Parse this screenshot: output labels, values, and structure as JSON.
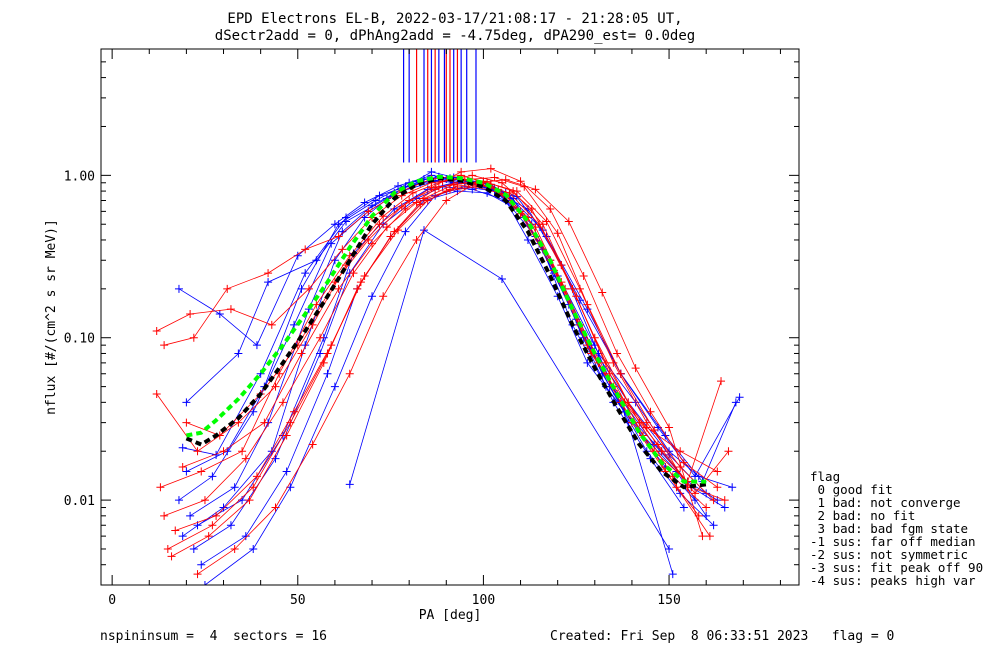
{
  "chart_data": {
    "type": "line",
    "title": "EPD Electrons EL-B, 2022-03-17/21:08:17 - 21:28:05 UT,",
    "subtitle": "dSectr2add = 0, dPhAng2add = -4.75deg, dPA290_est=   0.0deg",
    "xlabel": "PA [deg]",
    "ylabel": "nflux [#/(cm^2 s sr MeV)]",
    "xlim": [
      -3,
      185
    ],
    "ylim": [
      0.003,
      6.0
    ],
    "yscale": "log",
    "xticks": [
      0,
      50,
      100,
      150
    ],
    "xtick_labels": [
      "0",
      "50",
      "100",
      "150"
    ],
    "yticks": [
      0.01,
      0.1,
      1.0
    ],
    "ytick_labels": [
      "0.01",
      "0.10",
      "1.00"
    ],
    "grid": false,
    "legend": {
      "placement": "right",
      "title": "flag",
      "entries": [
        " 0 good fit",
        " 1 bad: not converge",
        " 2 bad: no fit",
        " 3 bad: bad fgm state",
        "-1 sus: far off median",
        "-2 sus: not symmetric",
        "-3 sus: fit peak off 90",
        "-4 sus: peaks high var"
      ]
    },
    "series": [
      {
        "color": "#0000ff",
        "x": [
          19,
          30,
          43,
          52,
          60,
          68,
          76,
          84,
          92,
          100,
          106,
          112,
          120,
          128,
          138,
          148,
          156,
          165
        ],
        "y": [
          0.006,
          0.009,
          0.02,
          0.09,
          0.3,
          0.55,
          0.78,
          0.95,
          0.97,
          0.9,
          0.7,
          0.4,
          0.18,
          0.07,
          0.035,
          0.02,
          0.012,
          0.009
        ]
      },
      {
        "color": "#0000ff",
        "x": [
          21,
          33,
          42,
          53,
          62,
          70,
          79,
          86,
          94,
          102,
          108,
          116,
          124,
          133,
          143,
          152,
          160
        ],
        "y": [
          0.008,
          0.012,
          0.03,
          0.15,
          0.45,
          0.65,
          0.85,
          1.05,
          0.95,
          0.88,
          0.72,
          0.35,
          0.12,
          0.05,
          0.025,
          0.015,
          0.008
        ]
      },
      {
        "color": "#0000ff",
        "x": [
          20,
          31,
          41,
          51,
          61,
          71,
          80,
          88,
          96,
          104,
          113,
          122,
          131,
          141,
          150,
          158,
          167
        ],
        "y": [
          0.015,
          0.02,
          0.05,
          0.2,
          0.5,
          0.7,
          0.9,
          0.98,
          0.92,
          0.8,
          0.5,
          0.2,
          0.08,
          0.04,
          0.02,
          0.014,
          0.012
        ]
      },
      {
        "color": "#0000ff",
        "x": [
          18,
          27,
          38,
          49,
          59,
          69,
          78,
          87,
          95,
          103,
          111,
          119,
          127,
          136,
          146,
          155,
          163
        ],
        "y": [
          0.01,
          0.014,
          0.035,
          0.12,
          0.38,
          0.6,
          0.8,
          0.92,
          0.9,
          0.82,
          0.55,
          0.25,
          0.1,
          0.045,
          0.022,
          0.013,
          0.01
        ]
      },
      {
        "color": "#0000ff",
        "x": [
          22,
          32,
          44,
          56,
          64,
          73,
          82,
          89,
          97,
          106,
          114,
          123,
          132,
          140,
          149,
          157
        ],
        "y": [
          0.005,
          0.007,
          0.018,
          0.08,
          0.25,
          0.5,
          0.72,
          0.85,
          0.82,
          0.7,
          0.42,
          0.16,
          0.06,
          0.03,
          0.016,
          0.01
        ]
      },
      {
        "color": "#0000ff",
        "x": [
          19,
          28,
          40,
          52,
          63,
          72,
          81,
          90,
          98,
          107,
          115,
          125,
          134,
          144,
          153,
          162
        ],
        "y": [
          0.021,
          0.019,
          0.06,
          0.25,
          0.55,
          0.75,
          0.88,
          0.95,
          0.87,
          0.75,
          0.38,
          0.13,
          0.05,
          0.02,
          0.011,
          0.007
        ]
      },
      {
        "color": "#0000ff",
        "x": [
          24,
          36,
          47,
          58,
          66,
          75,
          84,
          93,
          101,
          110,
          118,
          126,
          135,
          145,
          154
        ],
        "y": [
          0.004,
          0.006,
          0.015,
          0.06,
          0.2,
          0.42,
          0.7,
          0.8,
          0.78,
          0.6,
          0.3,
          0.11,
          0.04,
          0.018,
          0.009
        ]
      },
      {
        "color": "#0000ff",
        "x": [
          64,
          84,
          105,
          150
        ],
        "y": [
          0.0125,
          0.46,
          0.23,
          0.005
        ]
      },
      {
        "color": "#0000ff",
        "x": [
          20,
          34,
          42,
          55,
          63,
          74,
          83,
          91,
          100,
          109,
          117,
          128,
          137,
          147,
          157,
          169
        ],
        "y": [
          0.04,
          0.08,
          0.22,
          0.3,
          0.52,
          0.72,
          0.9,
          0.96,
          0.9,
          0.74,
          0.42,
          0.15,
          0.06,
          0.028,
          0.014,
          0.043
        ]
      },
      {
        "color": "#0000ff",
        "x": [
          23,
          35,
          46,
          57,
          65,
          76,
          85,
          92,
          99,
          106,
          116,
          126,
          137,
          149,
          159,
          168
        ],
        "y": [
          0.007,
          0.01,
          0.025,
          0.1,
          0.33,
          0.62,
          0.82,
          0.9,
          0.88,
          0.78,
          0.46,
          0.17,
          0.06,
          0.025,
          0.013,
          0.04
        ]
      },
      {
        "color": "#0000ff",
        "x": [
          25,
          38,
          48,
          60,
          70,
          79,
          87,
          95,
          103,
          112,
          121,
          130,
          139,
          151
        ],
        "y": [
          0.003,
          0.005,
          0.012,
          0.05,
          0.18,
          0.45,
          0.75,
          0.85,
          0.8,
          0.62,
          0.28,
          0.09,
          0.03,
          0.0035
        ]
      },
      {
        "color": "#0000ff",
        "x": [
          18,
          29,
          39,
          50,
          60,
          68,
          77,
          86,
          94,
          102,
          110,
          120,
          129,
          139,
          150,
          160
        ],
        "y": [
          0.2,
          0.14,
          0.09,
          0.32,
          0.5,
          0.68,
          0.86,
          1.0,
          0.93,
          0.84,
          0.6,
          0.24,
          0.09,
          0.04,
          0.019,
          0.011
        ]
      },
      {
        "color": "#ff0000",
        "x": [
          12,
          21,
          32,
          43,
          53,
          62,
          70,
          78,
          86,
          94,
          102,
          110,
          118,
          126,
          135,
          144,
          153,
          163
        ],
        "y": [
          0.11,
          0.14,
          0.15,
          0.12,
          0.2,
          0.35,
          0.55,
          0.75,
          0.9,
          0.95,
          0.85,
          0.6,
          0.3,
          0.12,
          0.05,
          0.028,
          0.02,
          0.015
        ]
      },
      {
        "color": "#ff0000",
        "x": [
          12,
          23,
          34,
          44,
          54,
          63,
          72,
          80,
          88,
          96,
          104,
          112,
          121,
          129,
          138,
          147,
          156,
          165
        ],
        "y": [
          0.045,
          0.02,
          0.03,
          0.05,
          0.12,
          0.28,
          0.5,
          0.7,
          0.85,
          0.9,
          0.82,
          0.55,
          0.22,
          0.08,
          0.04,
          0.022,
          0.012,
          0.01
        ]
      },
      {
        "color": "#ff0000",
        "x": [
          14,
          25,
          36,
          46,
          56,
          65,
          74,
          82,
          90,
          98,
          106,
          114,
          122,
          131,
          140,
          149,
          158
        ],
        "y": [
          0.008,
          0.01,
          0.018,
          0.04,
          0.1,
          0.25,
          0.48,
          0.68,
          0.8,
          0.85,
          0.76,
          0.48,
          0.2,
          0.07,
          0.03,
          0.015,
          0.008
        ]
      },
      {
        "color": "#ff0000",
        "x": [
          15,
          27,
          38,
          48,
          58,
          67,
          76,
          84,
          92,
          100,
          108,
          116,
          125,
          134,
          143,
          152,
          161
        ],
        "y": [
          0.005,
          0.007,
          0.012,
          0.03,
          0.08,
          0.22,
          0.45,
          0.72,
          0.88,
          0.92,
          0.8,
          0.5,
          0.18,
          0.06,
          0.025,
          0.012,
          0.006
        ]
      },
      {
        "color": "#ff0000",
        "x": [
          13,
          24,
          35,
          45,
          55,
          64,
          73,
          81,
          89,
          97,
          105,
          113,
          121,
          130,
          139,
          148,
          157,
          166
        ],
        "y": [
          0.012,
          0.015,
          0.02,
          0.06,
          0.16,
          0.32,
          0.56,
          0.78,
          0.92,
          1.0,
          0.9,
          0.62,
          0.28,
          0.1,
          0.04,
          0.02,
          0.011,
          0.02
        ]
      },
      {
        "color": "#ff0000",
        "x": [
          16,
          26,
          37,
          47,
          57,
          66,
          75,
          83,
          91,
          99,
          107,
          115,
          124,
          133,
          142,
          151,
          160
        ],
        "y": [
          0.0045,
          0.006,
          0.01,
          0.025,
          0.07,
          0.2,
          0.42,
          0.66,
          0.82,
          0.88,
          0.78,
          0.5,
          0.2,
          0.07,
          0.03,
          0.014,
          0.009
        ]
      },
      {
        "color": "#ff0000",
        "x": [
          14,
          22,
          31,
          42,
          52,
          61,
          69,
          78,
          86,
          94,
          102,
          110,
          119,
          128,
          137,
          146,
          155,
          164
        ],
        "y": [
          0.09,
          0.1,
          0.2,
          0.25,
          0.35,
          0.42,
          0.6,
          0.8,
          0.95,
          1.0,
          0.88,
          0.58,
          0.26,
          0.09,
          0.04,
          0.02,
          0.013,
          0.054
        ]
      },
      {
        "color": "#ff0000",
        "x": [
          17,
          28,
          39,
          49,
          59,
          68,
          77,
          85,
          93,
          101,
          109,
          117,
          126,
          135,
          144,
          153,
          162
        ],
        "y": [
          0.0065,
          0.008,
          0.014,
          0.035,
          0.09,
          0.24,
          0.46,
          0.7,
          0.86,
          0.9,
          0.8,
          0.52,
          0.2,
          0.07,
          0.03,
          0.016,
          0.01
        ]
      },
      {
        "color": "#ff0000",
        "x": [
          19,
          30,
          41,
          51,
          61,
          70,
          79,
          87,
          95,
          103,
          111,
          120,
          128,
          137,
          146,
          155
        ],
        "y": [
          0.016,
          0.02,
          0.03,
          0.08,
          0.2,
          0.38,
          0.62,
          0.82,
          0.94,
          0.97,
          0.85,
          0.44,
          0.16,
          0.06,
          0.027,
          0.012
        ]
      },
      {
        "color": "#ff0000",
        "x": [
          23,
          33,
          44,
          54,
          64,
          73,
          82,
          90,
          98,
          106,
          114,
          123,
          132,
          141,
          150,
          159
        ],
        "y": [
          0.0035,
          0.005,
          0.009,
          0.022,
          0.06,
          0.18,
          0.4,
          0.7,
          0.9,
          0.94,
          0.82,
          0.52,
          0.19,
          0.065,
          0.028,
          0.006
        ]
      },
      {
        "color": "#ff0000",
        "x": [
          20,
          29,
          40,
          50,
          60,
          69,
          78,
          86,
          94,
          102,
          110,
          118,
          127,
          136,
          145,
          154,
          163
        ],
        "y": [
          0.03,
          0.025,
          0.045,
          0.09,
          0.22,
          0.4,
          0.64,
          0.84,
          1.05,
          1.1,
          0.92,
          0.62,
          0.24,
          0.08,
          0.035,
          0.017,
          0.012
        ]
      }
    ],
    "median_curve": {
      "color": "#000000",
      "style": "dashed",
      "x": [
        20,
        24,
        28,
        34,
        40,
        46,
        52,
        58,
        64,
        70,
        76,
        82,
        88,
        94,
        100,
        106,
        112,
        118,
        124,
        130,
        136,
        142,
        148,
        154,
        160
      ],
      "y": [
        0.024,
        0.022,
        0.025,
        0.032,
        0.045,
        0.07,
        0.11,
        0.18,
        0.3,
        0.5,
        0.72,
        0.88,
        0.96,
        0.93,
        0.85,
        0.7,
        0.45,
        0.24,
        0.12,
        0.065,
        0.037,
        0.022,
        0.015,
        0.012,
        0.0125
      ]
    },
    "fit_curve": {
      "color": "#00ff00",
      "style": "dashed",
      "x": [
        20,
        24,
        28,
        34,
        40,
        46,
        52,
        58,
        64,
        70,
        76,
        82,
        88,
        94,
        100,
        106,
        112,
        118,
        124,
        130,
        136,
        142,
        148,
        154,
        160
      ],
      "y": [
        0.025,
        0.026,
        0.031,
        0.042,
        0.06,
        0.09,
        0.14,
        0.22,
        0.36,
        0.56,
        0.78,
        0.92,
        0.98,
        0.96,
        0.9,
        0.76,
        0.52,
        0.3,
        0.15,
        0.08,
        0.045,
        0.026,
        0.017,
        0.013,
        0.013
      ]
    },
    "top_markers": [
      {
        "color": "#0000ff",
        "x": [
          78.5,
          80,
          84,
          86,
          88,
          89.5,
          92,
          94,
          95.5,
          98
        ]
      },
      {
        "color": "#ff0000",
        "x": [
          82,
          85,
          87,
          90,
          91,
          93
        ]
      }
    ]
  },
  "footer": {
    "left": "nspininsum =  4  sectors = 16",
    "right": "Created: Fri Sep  8 06:33:51 2023   flag = 0"
  }
}
